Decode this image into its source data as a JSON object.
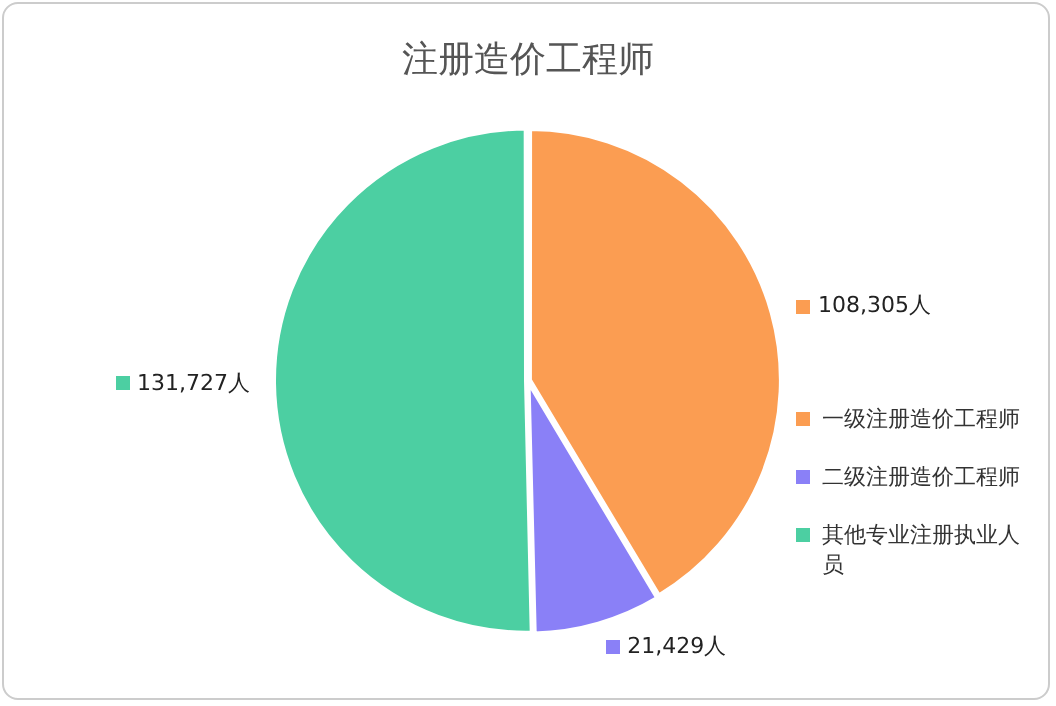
{
  "chart_data": {
    "type": "pie",
    "title": "注册造价工程师",
    "categories": [
      "一级注册造价工程师",
      "二级注册造价工程师",
      "其他专业注册执业人员"
    ],
    "values": [
      108305,
      21429,
      131727
    ],
    "value_labels": [
      "108,305人",
      "21,429人",
      "131,727人"
    ],
    "colors": [
      "#fb9d52",
      "#8a80f7",
      "#4ccfa2"
    ],
    "legend": "right"
  }
}
